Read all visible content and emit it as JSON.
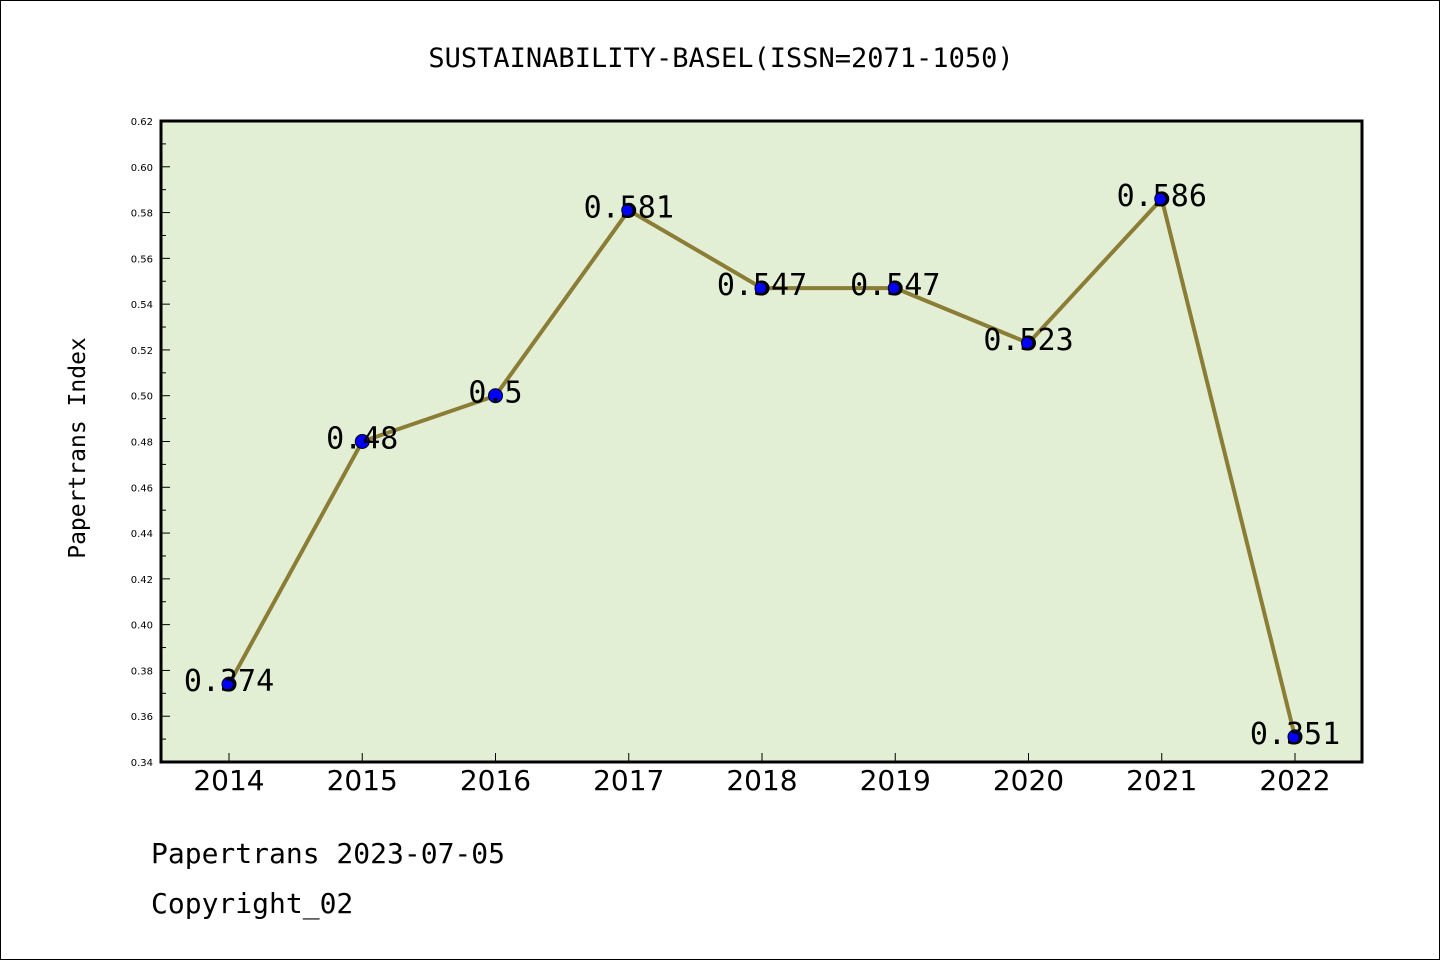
{
  "footer": {
    "line1": "Papertrans 2023-07-05",
    "line2": "Copyright_02"
  },
  "chart_data": {
    "type": "line",
    "title": "SUSTAINABILITY-BASEL(ISSN=2071-1050)",
    "xlabel": "",
    "ylabel": "Papertrans Index",
    "categories": [
      "2014",
      "2015",
      "2016",
      "2017",
      "2018",
      "2019",
      "2020",
      "2021",
      "2022"
    ],
    "series": [
      {
        "values": [
          0.374,
          0.48,
          0.5,
          0.581,
          0.547,
          0.547,
          0.523,
          0.586,
          0.351
        ],
        "labels": [
          "0.374",
          "0.48",
          "0.5",
          "0.581",
          "0.547",
          "0.547",
          "0.523",
          "0.586",
          "0.351"
        ]
      }
    ],
    "ylim": [
      0.34,
      0.62
    ],
    "yticks": [
      "0.34",
      "0.36",
      "0.38",
      "0.40",
      "0.42",
      "0.44",
      "0.46",
      "0.48",
      "0.50",
      "0.52",
      "0.54",
      "0.56",
      "0.58",
      "0.60",
      "0.62"
    ],
    "grid": false,
    "legend": "none",
    "colors": {
      "plot_background": "#e2efd5",
      "line": "#8b7d35",
      "marker": "#0000ff"
    }
  }
}
